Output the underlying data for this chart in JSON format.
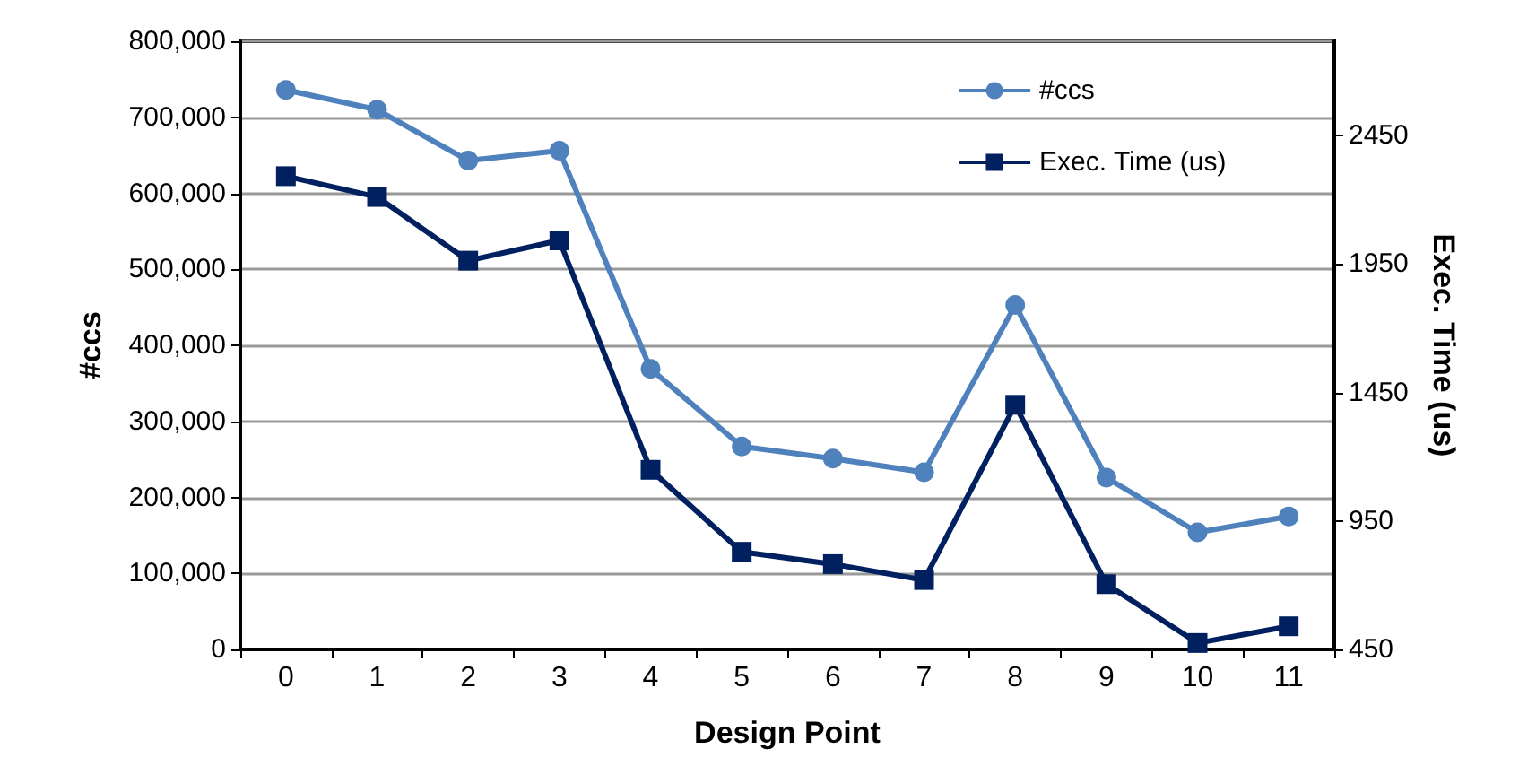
{
  "chart_data": {
    "type": "line",
    "xlabel": "Design Point",
    "ylabel": "#ccs",
    "y2label": "Exec. Time (us)",
    "categories": [
      "0",
      "1",
      "2",
      "3",
      "4",
      "5",
      "6",
      "7",
      "8",
      "9",
      "10",
      "11"
    ],
    "series": [
      {
        "name": "#ccs",
        "color": "#4f81bd",
        "marker": "circle",
        "values": [
          736000,
          710000,
          643000,
          656000,
          369000,
          267000,
          251000,
          233000,
          453000,
          226000,
          154000,
          175000
        ]
      },
      {
        "name": "Exec. Time (us)",
        "color": "#002060",
        "marker": "square",
        "axis": "y2",
        "values": [
          2292,
          2211,
          1963,
          2042,
          1149,
          830,
          782,
          720,
          1402,
          704,
          475,
          540
        ]
      }
    ],
    "ylim": [
      0,
      800000
    ],
    "yticks": [
      0,
      {
        "value": 100000,
        "label": "100,000"
      },
      {
        "value": 200000,
        "label": "200,000"
      },
      {
        "value": 300000,
        "label": "300,000"
      },
      {
        "value": 400000,
        "label": "400,000"
      },
      {
        "value": 500000,
        "label": "500,000"
      },
      {
        "value": 600000,
        "label": "600,000"
      },
      {
        "value": 700000,
        "label": "700,000"
      },
      {
        "value": 800000,
        "label": "800,000"
      }
    ],
    "y2lim": [
      450,
      2817
    ],
    "y2ticks": [
      450,
      950,
      1450,
      1950,
      2450
    ],
    "grid": "y",
    "legend": "top right",
    "line_style": "solid"
  }
}
